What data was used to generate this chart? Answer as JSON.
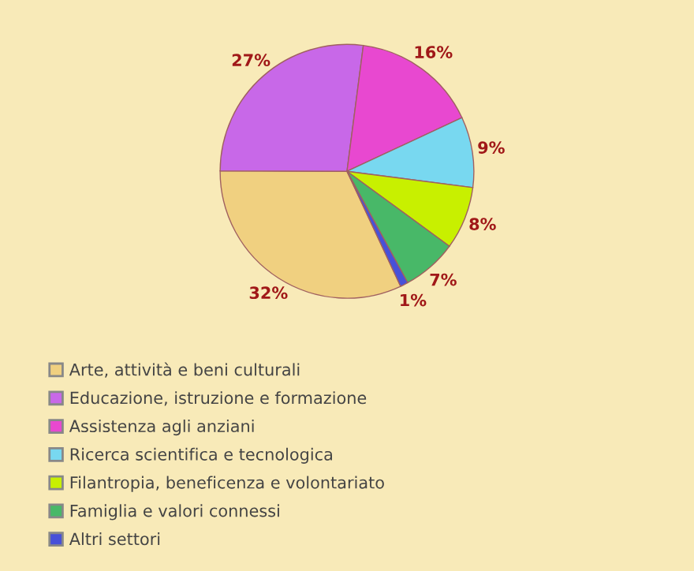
{
  "chart_data": {
    "type": "pie",
    "categories": [
      "Arte, attività e beni culturali",
      "Educazione, istruzione e formazione",
      "Assistenza agli anziani",
      "Ricerca scientifica e tecnologica",
      "Filantropia, beneficenza e volontariato",
      "Famiglia e valori connessi",
      "Altri settori"
    ],
    "values": [
      32,
      27,
      16,
      9,
      8,
      7,
      1
    ],
    "value_labels": [
      "32%",
      "27%",
      "16%",
      "9%",
      "8%",
      "7%",
      "1%"
    ],
    "colors": [
      "#f0d080",
      "#c868e8",
      "#e848d0",
      "#78d8f0",
      "#c8f000",
      "#48b868",
      "#4850d8"
    ],
    "legend": "bottom"
  }
}
